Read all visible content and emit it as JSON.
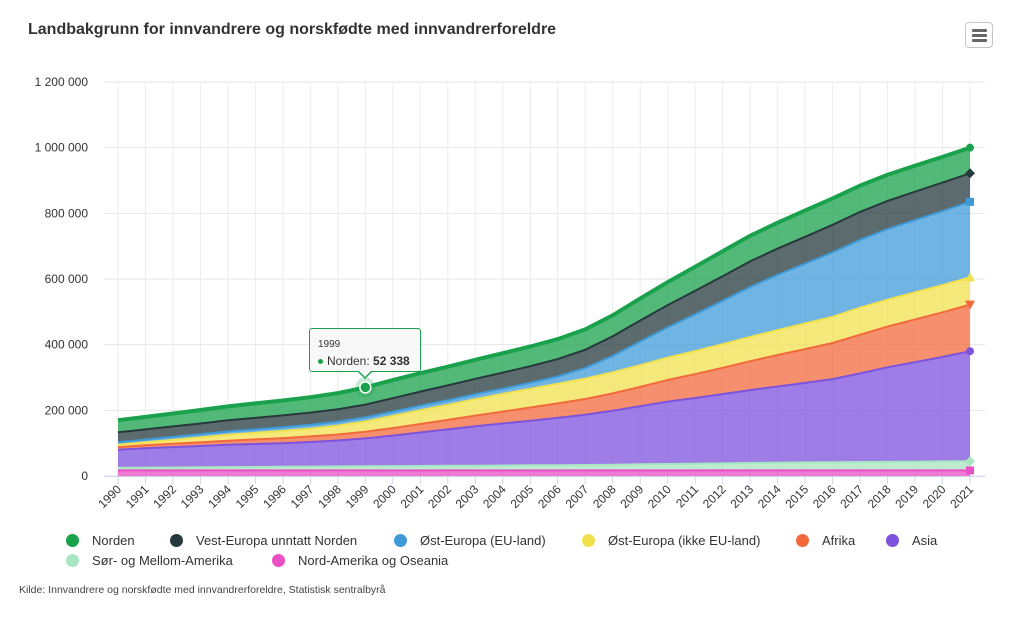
{
  "header": {
    "title": "Landbakgrunn for innvandrere og norskfødte med innvandrerforeldre",
    "menu_icon": "hamburger-menu-icon"
  },
  "source": "Kilde: Innvandrere og norskfødte med innvandrerforeldre, Statistisk sentralbyrå",
  "tooltip": {
    "year": "1999",
    "series": "Norden",
    "label": "Norden: ",
    "value": "52 338"
  },
  "chart_data": {
    "type": "area",
    "stacked": true,
    "title": "Landbakgrunn for innvandrere og norskfødte med innvandrerforeldre",
    "xlabel": "",
    "ylabel": "",
    "ylim": [
      0,
      1200000
    ],
    "yticks": [
      0,
      200000,
      400000,
      600000,
      800000,
      1000000,
      1200000
    ],
    "ytick_labels": [
      "0",
      "200 000",
      "400 000",
      "600 000",
      "800 000",
      "1 000 000",
      "1 200 000"
    ],
    "grid": true,
    "legend_position": "bottom",
    "x": [
      "1990",
      "1991",
      "1992",
      "1993",
      "1994",
      "1995",
      "1996",
      "1997",
      "1998",
      "1999",
      "2000",
      "2001",
      "2002",
      "2003",
      "2004",
      "2005",
      "2006",
      "2007",
      "2008",
      "2009",
      "2010",
      "2011",
      "2012",
      "2013",
      "2014",
      "2015",
      "2016",
      "2017",
      "2018",
      "2019",
      "2020",
      "2021"
    ],
    "series": [
      {
        "name": "Nord-Amerika og Oseania",
        "color": "#ea4fc4",
        "marker": "square",
        "values": [
          17000,
          17000,
          17000,
          17000,
          17000,
          17000,
          17000,
          17000,
          17000,
          17000,
          17000,
          17000,
          17000,
          17000,
          17000,
          17000,
          17000,
          17000,
          17000,
          17000,
          17000,
          17000,
          17000,
          17000,
          17000,
          17000,
          17000,
          17000,
          17000,
          17000,
          17000,
          17000
        ]
      },
      {
        "name": "Sør- og Mellom-Amerika",
        "color": "#a8e5c2",
        "marker": "diamond",
        "values": [
          8000,
          8500,
          9000,
          9500,
          10000,
          10500,
          11000,
          11500,
          12000,
          12500,
          13000,
          13500,
          14000,
          14500,
          15000,
          15500,
          16000,
          16500,
          17500,
          18500,
          19500,
          20500,
          21500,
          22500,
          23500,
          24500,
          25000,
          25500,
          26000,
          26500,
          27500,
          28000
        ]
      },
      {
        "name": "Asia",
        "color": "#7d53de",
        "marker": "circle",
        "values": [
          55000,
          59000,
          62000,
          65000,
          68000,
          70000,
          72000,
          75000,
          79000,
          85000,
          93000,
          102000,
          111000,
          120000,
          128000,
          136000,
          144000,
          153000,
          164000,
          177000,
          190000,
          200000,
          211000,
          222000,
          232000,
          242000,
          253000,
          270000,
          288000,
          303000,
          318000,
          335000
        ]
      },
      {
        "name": "Afrika",
        "color": "#f26a3c",
        "marker": "triangle-down",
        "values": [
          8000,
          9000,
          10000,
          11000,
          12500,
          14000,
          15500,
          17000,
          18500,
          20500,
          23000,
          26000,
          29000,
          32500,
          36000,
          40000,
          44000,
          48000,
          53000,
          59000,
          66000,
          73000,
          80000,
          88000,
          96000,
          103000,
          110000,
          118000,
          124000,
          130000,
          136000,
          142000
        ]
      },
      {
        "name": "Øst-Europa (ikke EU-land)",
        "color": "#f2e14f",
        "marker": "triangle",
        "values": [
          7000,
          9000,
          12000,
          15000,
          18000,
          20000,
          22000,
          24000,
          27000,
          31000,
          37000,
          42000,
          46000,
          50000,
          54000,
          57000,
          60000,
          62000,
          64000,
          66000,
          68000,
          70000,
          72000,
          74000,
          76000,
          78000,
          80000,
          82000,
          82000,
          83000,
          83000,
          83000
        ]
      },
      {
        "name": "Øst-Europa (EU-land)",
        "color": "#3f9bd8",
        "marker": "square",
        "values": [
          8000,
          8500,
          9000,
          9500,
          10000,
          10500,
          11000,
          11500,
          12000,
          12500,
          13000,
          13500,
          14000,
          15000,
          16000,
          18000,
          22000,
          32000,
          50000,
          72000,
          92000,
          112000,
          132000,
          152000,
          168000,
          182000,
          196000,
          207000,
          215000,
          220000,
          225000,
          230000
        ]
      },
      {
        "name": "Vest-Europa unntatt Norden",
        "color": "#263a3d",
        "marker": "diamond",
        "values": [
          30000,
          31000,
          32000,
          33000,
          34000,
          35000,
          36000,
          37000,
          38000,
          39000,
          41000,
          43000,
          45000,
          47000,
          49000,
          51000,
          53000,
          56000,
          60000,
          64000,
          68000,
          72000,
          75000,
          78000,
          80000,
          82000,
          84000,
          85000,
          86000,
          86500,
          87000,
          87000
        ]
      },
      {
        "name": "Norden",
        "color": "#19a24b",
        "marker": "circle",
        "values": [
          37000,
          38000,
          39500,
          41000,
          42500,
          44000,
          45500,
          47000,
          49000,
          52338,
          55000,
          56000,
          57000,
          58000,
          59000,
          60000,
          61000,
          62000,
          64000,
          67000,
          70000,
          73000,
          76000,
          78000,
          79000,
          80000,
          80500,
          80000,
          79500,
          79000,
          78500,
          78000
        ]
      }
    ],
    "legend": [
      {
        "name": "Norden",
        "color": "#19a24b"
      },
      {
        "name": "Vest-Europa unntatt Norden",
        "color": "#263a3d"
      },
      {
        "name": "Øst-Europa (EU-land)",
        "color": "#3f9bd8"
      },
      {
        "name": "Øst-Europa (ikke EU-land)",
        "color": "#f2e14f"
      },
      {
        "name": "Afrika",
        "color": "#f26a3c"
      },
      {
        "name": "Asia",
        "color": "#7d53de"
      },
      {
        "name": "Sør- og Mellom-Amerika",
        "color": "#a8e5c2"
      },
      {
        "name": "Nord-Amerika og Oseania",
        "color": "#ea4fc4"
      }
    ],
    "highlighted_point": {
      "series": "Norden",
      "x": "1999",
      "value": 52338
    }
  }
}
